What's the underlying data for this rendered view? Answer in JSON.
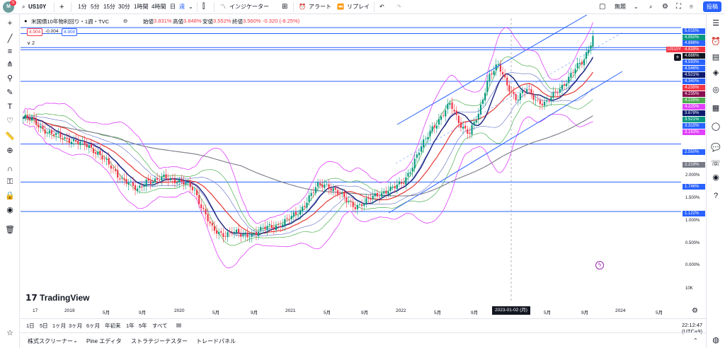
{
  "topbar": {
    "avatar_initial": "M",
    "avatar_badge": "11",
    "search_icon": "search-icon",
    "symbol": "US10Y",
    "add_symbol": "+",
    "intervals": [
      "1分",
      "5分",
      "15分",
      "30分",
      "1時間",
      "4時間",
      "日",
      "週"
    ],
    "active_interval": "週",
    "interval_dropdown": "⌄",
    "indicators": "インジケーター",
    "alert": "アラート",
    "replay": "リプレイ",
    "layout_name": "無題",
    "publish": "投稿"
  },
  "legend": {
    "title": "米国債10年物利回り・1週・TVC",
    "open_label": "始値",
    "open": "3.831%",
    "high_label": "高値",
    "high": "3.848%",
    "low_label": "安値",
    "low": "3.552%",
    "close_label": "終値",
    "close": "3.560%",
    "change": "-0.320 (-8.25%)",
    "bid": "4.904",
    "spread": "-0.004",
    "ask": "4.900",
    "pane_toggle": "∨ 2"
  },
  "price_labels": [
    {
      "text": "5.015%",
      "color": "#2962ff"
    },
    {
      "text": "4.950%",
      "color": "#089981"
    },
    {
      "text": "4.888%",
      "color": "#2962ff"
    },
    {
      "text": "4.839%",
      "color": "#f23645"
    },
    {
      "text": "4.686%",
      "color": "#131722"
    },
    {
      "text": "4.593%",
      "color": "#2962ff"
    },
    {
      "text": "4.546%",
      "color": "#2962ff"
    },
    {
      "text": "4.521%",
      "color": "#0d1b6e"
    },
    {
      "text": "4.340%",
      "color": "#2962ff"
    },
    {
      "text": "4.235%",
      "color": "#f23645"
    },
    {
      "text": "4.235%",
      "color": "#880e4f"
    },
    {
      "text": "4.235%",
      "color": "#4caf50"
    },
    {
      "text": "4.225%",
      "color": "#e040fb"
    },
    {
      "text": "3.878%",
      "color": "#0d1b6e"
    },
    {
      "text": "3.521%",
      "color": "#089981"
    },
    {
      "text": "3.315%",
      "color": "#2962ff"
    },
    {
      "text": "3.163%",
      "color": "#e040fb"
    },
    {
      "text": "2.550%",
      "color": "#2962ff"
    },
    {
      "text": "2.219%",
      "color": "#787b86"
    },
    {
      "text": "1.746%",
      "color": "#2962ff"
    },
    {
      "text": "1.122%",
      "color": "#2962ff"
    }
  ],
  "price_ticks": [
    "2.000%",
    "1.500%",
    "1.000%",
    "0.500%",
    "0.000%"
  ],
  "volume_tick": "10K",
  "symbol_tag": "US10Y",
  "time_axis": [
    "17",
    "2019",
    "5月",
    "9月",
    "2020",
    "5月",
    "9月",
    "2021",
    "5月",
    "9月",
    "2022",
    "5月",
    "9月",
    "5月",
    "9月",
    "2024",
    "5月"
  ],
  "crosshair_date": "2023-01-02 (月)",
  "logo_text": "TradingView",
  "ranges": [
    "1日",
    "5日",
    "1ヶ月",
    "3ヶ月",
    "6ヶ月",
    "年初来",
    "1年",
    "5年",
    "すべて"
  ],
  "clock": "22:12:47 (UTC+9)",
  "panels": [
    "株式スクリーナー",
    "Pine エディタ",
    "ストラテジーテスター",
    "トレードパネル"
  ],
  "colors": {
    "accent": "#2962ff",
    "up": "#089981",
    "down": "#f23645",
    "ma_fast": "#1a237e",
    "ma_slow": "#e53935",
    "ma_long": "#787b86",
    "bollinger": "#e040fb",
    "keltner": "#4caf50",
    "envelope": "#5c6bc0"
  },
  "chart_data": {
    "type": "candlestick",
    "symbol": "US10Y",
    "interval": "1W",
    "unit": "%",
    "x_start": "2018-11",
    "x_end": "2023-10",
    "weekly_close_approx": [
      3.1,
      3.05,
      2.9,
      2.75,
      2.7,
      2.65,
      2.55,
      2.5,
      2.35,
      2.1,
      1.9,
      1.75,
      1.55,
      1.8,
      1.75,
      1.85,
      1.8,
      1.7,
      1.6,
      1.15,
      0.7,
      0.65,
      0.7,
      0.6,
      0.65,
      0.72,
      0.8,
      0.85,
      0.95,
      1.1,
      1.4,
      1.65,
      1.7,
      1.55,
      1.35,
      1.25,
      1.3,
      1.45,
      1.55,
      1.6,
      1.75,
      2.1,
      2.5,
      2.9,
      3.1,
      3.4,
      3.0,
      2.75,
      3.2,
      4.0,
      4.2,
      3.8,
      3.5,
      3.7,
      3.5,
      3.4,
      3.6,
      3.85,
      4.1,
      4.3,
      4.85
    ],
    "horizontal_levels": [
      5.015,
      4.888,
      4.593,
      4.546,
      3.878,
      2.55,
      1.746,
      1.122
    ],
    "y_ticks": [
      0.0,
      0.5,
      1.0,
      1.5,
      2.0
    ],
    "grid": false
  }
}
